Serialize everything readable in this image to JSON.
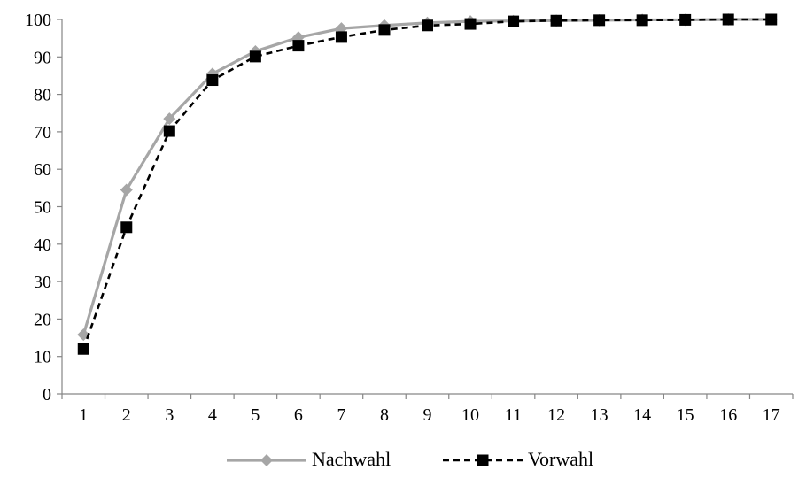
{
  "chart_data": {
    "type": "line",
    "title": "",
    "xlabel": "",
    "ylabel": "",
    "x": [
      1,
      2,
      3,
      4,
      5,
      6,
      7,
      8,
      9,
      10,
      11,
      12,
      13,
      14,
      15,
      16,
      17
    ],
    "ylim": [
      0,
      100
    ],
    "yticks": [
      0,
      10,
      20,
      30,
      40,
      50,
      60,
      70,
      80,
      90,
      100
    ],
    "grid": false,
    "legend_position": "bottom",
    "series": [
      {
        "name": "Nachwahl",
        "color": "#a6a6a6",
        "line_style": "solid",
        "marker": "diamond",
        "values": [
          15.8,
          54.5,
          73.5,
          85.5,
          91.5,
          95.2,
          97.6,
          98.4,
          99.1,
          99.5,
          99.6,
          99.7,
          99.8,
          99.9,
          99.9,
          100,
          100
        ]
      },
      {
        "name": "Vorwahl",
        "color": "#000000",
        "line_style": "dashed",
        "marker": "square",
        "values": [
          12.0,
          44.5,
          70.2,
          83.8,
          90.1,
          93.0,
          95.3,
          97.2,
          98.4,
          98.8,
          99.5,
          99.7,
          99.8,
          99.8,
          99.9,
          100,
          100
        ]
      }
    ]
  }
}
